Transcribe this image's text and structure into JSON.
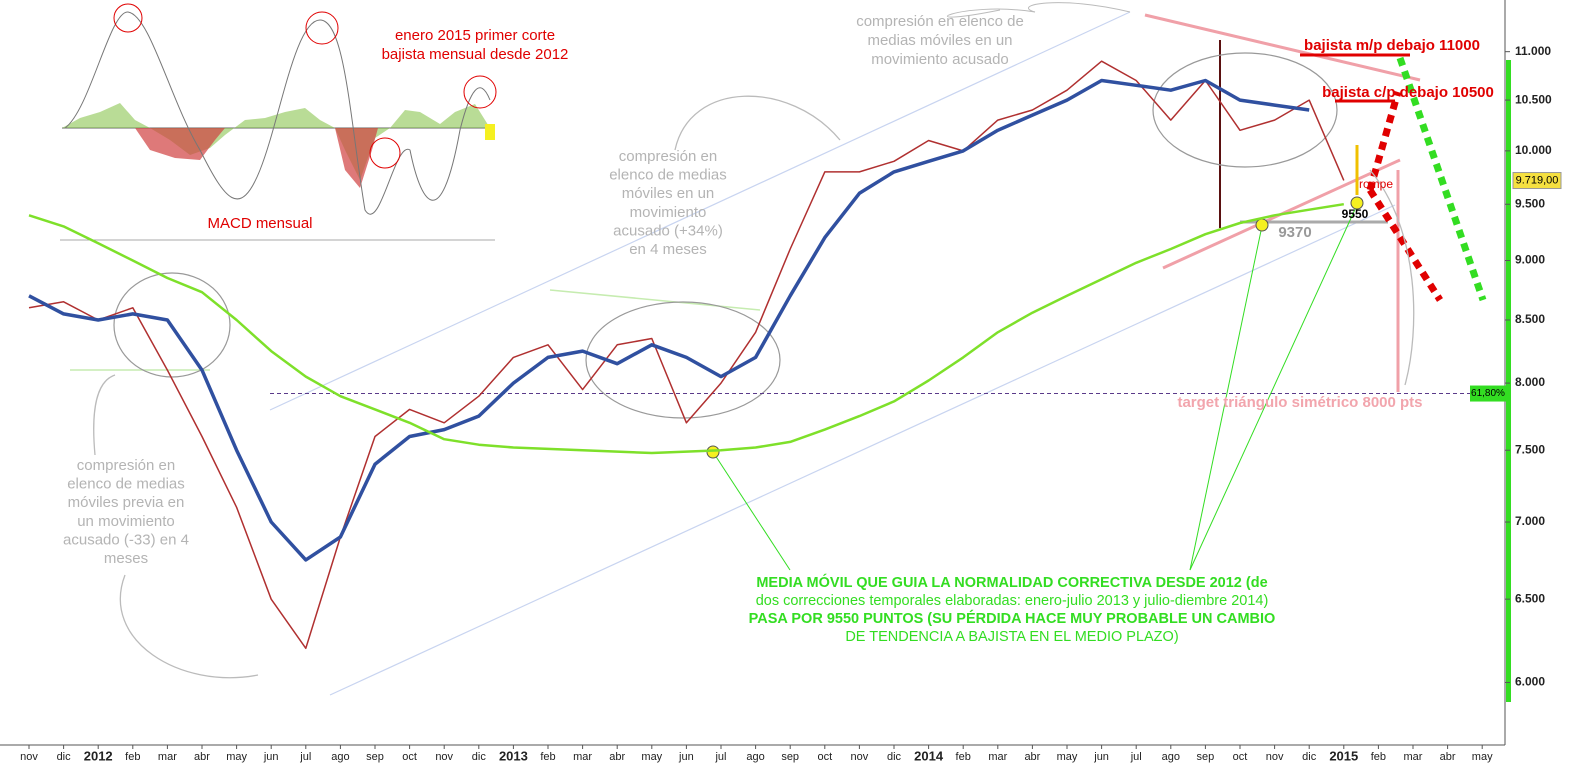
{
  "chart_data": {
    "type": "line",
    "log_scale": true,
    "categories": [
      "nov",
      "dic",
      "2012",
      "feb",
      "mar",
      "abr",
      "may",
      "jun",
      "jul",
      "ago",
      "sep",
      "oct",
      "nov",
      "dic",
      "2013",
      "feb",
      "mar",
      "abr",
      "may",
      "jun",
      "jul",
      "ago",
      "sep",
      "oct",
      "nov",
      "dic",
      "2014",
      "feb",
      "mar",
      "abr",
      "may",
      "jun",
      "jul",
      "ago",
      "sep",
      "oct",
      "nov",
      "dic",
      "2015",
      "feb",
      "mar",
      "abr",
      "may"
    ],
    "series": [
      {
        "color": "#b03030",
        "values": [
          8600,
          8650,
          8500,
          8600,
          8100,
          7600,
          7100,
          6500,
          6200,
          6900,
          7600,
          7800,
          7700,
          7900,
          8200,
          8300,
          7950,
          8300,
          8350,
          7700,
          8000,
          8400,
          9100,
          9800,
          9800,
          9900,
          10100,
          10000,
          10300,
          10400,
          10600,
          10900,
          10700,
          10300,
          10700,
          10200,
          10300,
          10500,
          9720,
          null,
          null,
          null,
          null
        ]
      },
      {
        "color": "#3050a0",
        "values": [
          8700,
          8550,
          8500,
          8550,
          8500,
          8100,
          7500,
          7000,
          6750,
          6900,
          7400,
          7600,
          7650,
          7750,
          8000,
          8200,
          8250,
          8150,
          8300,
          8200,
          8050,
          8200,
          8700,
          9200,
          9600,
          9800,
          9900,
          10000,
          10200,
          10350,
          10500,
          10700,
          10650,
          10600,
          10700,
          10500,
          10450,
          10400,
          null,
          null,
          null,
          null,
          null
        ]
      },
      {
        "color": "#7ee02a",
        "values": [
          9400,
          9300,
          9150,
          9000,
          8850,
          8730,
          8500,
          8250,
          8050,
          7900,
          7800,
          7700,
          7580,
          7540,
          7520,
          7510,
          7500,
          7490,
          7480,
          7490,
          7500,
          7520,
          7560,
          7650,
          7750,
          7860,
          8020,
          8200,
          8400,
          8560,
          8700,
          8840,
          8980,
          9100,
          9230,
          9330,
          9400,
          9450,
          9500,
          null,
          null,
          null,
          null
        ]
      }
    ],
    "ylim": [
      5650,
      11560
    ],
    "yticks": [
      {
        "value": 6000,
        "label": "6.000"
      },
      {
        "value": 6500,
        "label": "6.500"
      },
      {
        "value": 7000,
        "label": "7.000"
      },
      {
        "value": 7500,
        "label": "7.500"
      },
      {
        "value": 8000,
        "label": "8.000"
      },
      {
        "value": 8500,
        "label": "8.500"
      },
      {
        "value": 9000,
        "label": "9.000"
      },
      {
        "value": 9500,
        "label": "9.500"
      },
      {
        "value": 10000,
        "label": "10.000"
      },
      {
        "value": 10500,
        "label": "10.500"
      },
      {
        "value": 11000,
        "label": "11.000"
      }
    ],
    "last_price": {
      "value": 9719,
      "label": "9.719,00"
    },
    "fib_level": {
      "value": 7920,
      "label": "61,80%"
    },
    "annotations": [
      {
        "color": "#b4b4b4",
        "lines": [
          "compresión en elenco de",
          "medias móviles en un",
          "movimiento acusado"
        ]
      },
      {
        "color": "#e00000",
        "lines": [
          "bajista m/p debajo 11000"
        ]
      },
      {
        "color": "#e00000",
        "lines": [
          "bajista c/p debajo 10500"
        ]
      },
      {
        "color": "#e00000",
        "lines": [
          "rompe"
        ]
      },
      {
        "color": "#000000",
        "lines": [
          "9550"
        ]
      },
      {
        "color": "#999999",
        "lines": [
          "9370"
        ]
      },
      {
        "color": "#f2a5ad",
        "lines": [
          "target triángulo simétrico 8000 pts"
        ]
      },
      {
        "color": "#b4b4b4",
        "lines": [
          "compresión en",
          "elenco de medias",
          "móviles en un",
          "movimiento",
          "acusado (+34%)",
          "en 4 meses"
        ]
      },
      {
        "color": "#b4b4b4",
        "lines": [
          "compresión en",
          "elenco de medias",
          "móviles previa en",
          "un movimiento",
          "acusado (-33) en 4",
          "meses"
        ]
      },
      {
        "color": "#e00000",
        "lines": [
          "enero 2015 primer corte",
          "bajista mensual desde 2012"
        ]
      },
      {
        "color": "#e00000",
        "lines": [
          "MACD mensual"
        ]
      },
      {
        "color": "#33dd22",
        "lines": [
          "MEDIA MÓVIL QUE GUIA LA NORMALIDAD CORRECTIVA DESDE 2012 (de",
          "dos correcciones temporales elaboradas: enero-julio 2013 y julio-diembre 2014)",
          "PASA POR 9550 PUNTOS (SU PÉRDIDA HACE MUY PROBABLE UN CAMBIO",
          "DE TENDENCIA A BAJISTA EN EL MEDIO PLAZO)"
        ]
      }
    ]
  }
}
